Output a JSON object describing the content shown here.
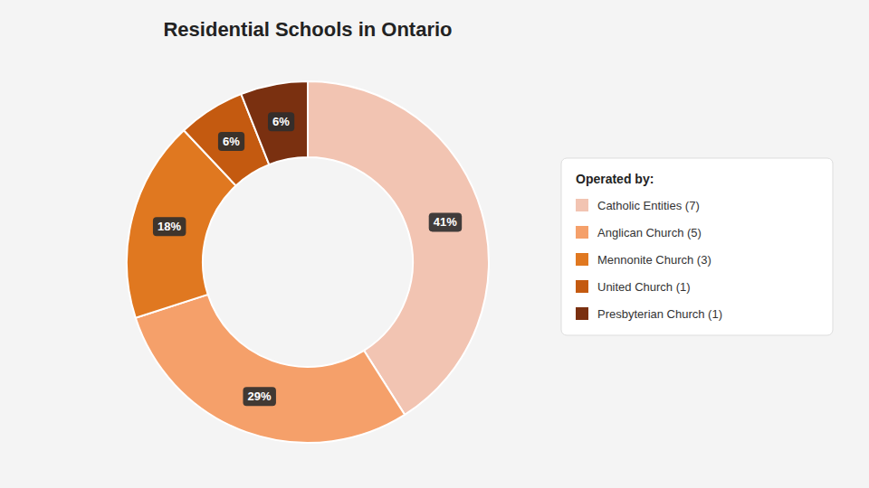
{
  "chart_data": {
    "type": "donut",
    "title": "Residential Schools in Ontario",
    "legend_title": "Operated by:",
    "categories": [
      "Catholic Entities (7)",
      "Anglican Church (5)",
      "Mennonite Church (3)",
      "United Church (1)",
      "Presbyterian Church (1)"
    ],
    "values": [
      41,
      29,
      18,
      6,
      6
    ],
    "value_labels": [
      "41%",
      "29%",
      "18%",
      "6%",
      "6%"
    ],
    "colors": [
      "#F2C4B2",
      "#F5A06A",
      "#E07820",
      "#C45A10",
      "#7A3010"
    ],
    "data_labels": true,
    "legend": "right"
  }
}
